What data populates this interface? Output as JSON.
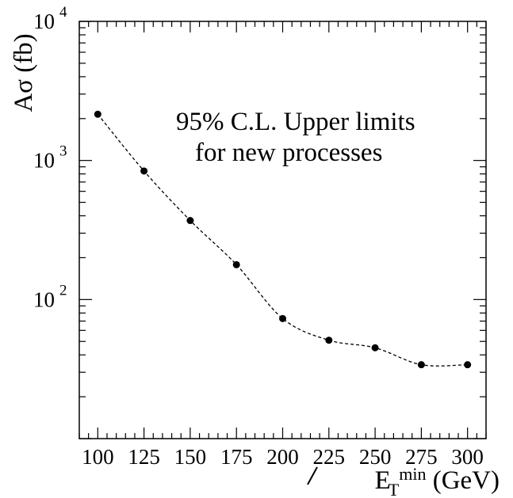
{
  "chart_data": {
    "type": "line",
    "title": "",
    "xlabel": {
      "main": "E",
      "sub": "T",
      "sup": "min",
      "unit": " (GeV)"
    },
    "ylabel": "Aσ (fb)",
    "annotation": [
      "95% C.L. Upper limits",
      "for new processes"
    ],
    "xlim": [
      90,
      310
    ],
    "ylim": [
      10,
      10000
    ],
    "yscale": "log",
    "grid": false,
    "x_ticks": [
      100,
      125,
      150,
      175,
      200,
      225,
      250,
      275,
      300
    ],
    "x_tick_labels": [
      "100",
      "125",
      "150",
      "175",
      "200",
      "225",
      "250",
      "275",
      "300"
    ],
    "y_ticks": [
      {
        "value": 100,
        "base": "10",
        "exp": "2"
      },
      {
        "value": 1000,
        "base": "10",
        "exp": "3"
      },
      {
        "value": 10000,
        "base": "10",
        "exp": "4"
      }
    ],
    "series": [
      {
        "x": [
          100,
          125,
          150,
          175,
          200,
          225,
          250,
          275,
          300
        ],
        "y": [
          2150,
          840,
          370,
          178,
          73,
          51,
          45,
          34,
          34
        ]
      }
    ]
  }
}
